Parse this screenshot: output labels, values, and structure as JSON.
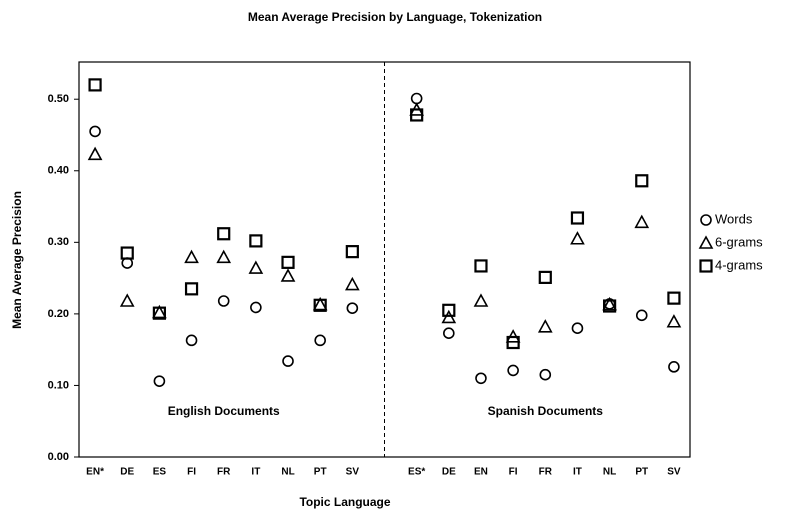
{
  "chart_data": {
    "type": "scatter",
    "title": "Mean Average Precision by Language, Tokenization",
    "xlabel": "Topic Language",
    "ylabel": "Mean Average Precision",
    "categories": [
      "EN*",
      "DE",
      "ES",
      "FI",
      "FR",
      "IT",
      "NL",
      "PT",
      "SV",
      null,
      "ES*",
      "DE",
      "EN",
      "FI",
      "FR",
      "IT",
      "NL",
      "PT",
      "SV"
    ],
    "annotations": [
      "English Documents",
      "Spanish Documents"
    ],
    "series": [
      {
        "name": "Words",
        "marker": "circle",
        "color": "#000000",
        "values": [
          0.455,
          0.271,
          0.106,
          0.163,
          0.218,
          0.209,
          0.134,
          0.163,
          0.208,
          null,
          0.501,
          0.173,
          0.11,
          0.121,
          0.115,
          0.18,
          0.214,
          0.198,
          0.126
        ]
      },
      {
        "name": "6-grams",
        "marker": "triangle",
        "color": "#000000",
        "values": [
          0.423,
          0.218,
          0.202,
          0.279,
          0.279,
          0.264,
          0.253,
          0.213,
          0.241,
          null,
          0.485,
          0.195,
          0.218,
          0.168,
          0.182,
          0.305,
          0.213,
          0.328,
          0.189
        ]
      },
      {
        "name": "4-grams",
        "marker": "square",
        "color": "#000000",
        "values": [
          0.52,
          0.285,
          0.201,
          0.235,
          0.312,
          0.302,
          0.272,
          0.212,
          0.287,
          null,
          0.478,
          0.205,
          0.267,
          0.16,
          0.251,
          0.334,
          0.211,
          0.386,
          0.222
        ]
      }
    ],
    "ylim": [
      0,
      0.552
    ],
    "yticks": [
      {
        "value": 0,
        "label": "0.00"
      },
      {
        "value": 0.1,
        "label": "0.10"
      },
      {
        "value": 0.2,
        "label": "0.20"
      },
      {
        "value": 0.3,
        "label": "0.30"
      },
      {
        "value": 0.4,
        "label": "0.40"
      },
      {
        "value": 0.5,
        "label": "0.50"
      }
    ],
    "grid": false,
    "legend": "right"
  }
}
